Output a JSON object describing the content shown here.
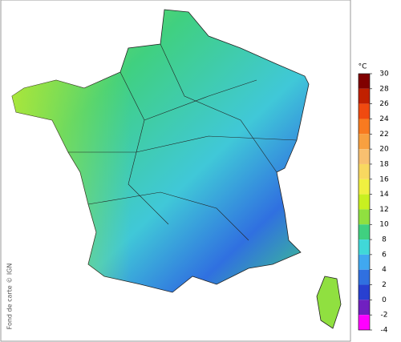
{
  "map": {
    "credit": "Fond de carte © IGN"
  },
  "legend": {
    "unit": "°C",
    "ticks": [
      30,
      28,
      26,
      24,
      22,
      20,
      18,
      16,
      14,
      12,
      10,
      8,
      6,
      4,
      2,
      0,
      -2,
      -4
    ],
    "colors": [
      "#800000",
      "#c02000",
      "#f04a10",
      "#f87a20",
      "#f8a040",
      "#f8c070",
      "#f8d860",
      "#f0f040",
      "#c8f020",
      "#90e040",
      "#40d080",
      "#40d8d8",
      "#40a8f0",
      "#3070e0",
      "#2840d0",
      "#7020c0",
      "#ff00ff"
    ]
  }
}
